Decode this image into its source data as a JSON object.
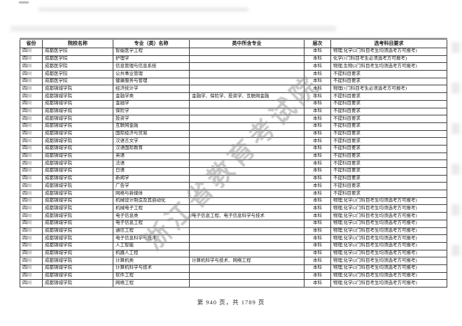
{
  "document": {
    "watermark_text": "浙江省教育考试院",
    "footer": "第 940 页，共 1789 页"
  },
  "colors": {
    "border": "#3c3c3c",
    "text": "#1a1a1a",
    "watermark_gray": "#8f8f8f",
    "table_top_border": "#979797",
    "background": "#ffffff"
  },
  "table": {
    "headers": [
      "省份",
      "院校名称",
      "专业（类）名称",
      "类中所含专业",
      "层次",
      "选考科目要求"
    ],
    "rows": [
      [
        "四川",
        "成都医学院",
        "智能医学工程",
        "",
        "本科",
        "物理,化学(2门科目考生均须选考方可报考)"
      ],
      [
        "四川",
        "成都医学院",
        "护理学",
        "",
        "本科",
        "化学(1门科目考生必须选考方可报考)"
      ],
      [
        "四川",
        "成都医学院",
        "信息管理与信息系统",
        "",
        "本科",
        "物理,生物(2门科目考生均须选考方可报考)"
      ],
      [
        "四川",
        "成都医学院",
        "公共事业管理",
        "",
        "本科",
        "不提科目要求"
      ],
      [
        "四川",
        "成都医学院",
        "健康服务与管理",
        "",
        "本科",
        "不提科目要求"
      ],
      [
        "四川",
        "成都锦城学院",
        "经济统计学",
        "",
        "本科",
        "物理(1门科目考生必须选考方可报考)"
      ],
      [
        "四川",
        "成都锦城学院",
        "金融学类",
        "金融学、保险学、投资学、互联网金融",
        "本科",
        "不提科目要求"
      ],
      [
        "四川",
        "成都锦城学院",
        "金融学",
        "",
        "本科",
        "不提科目要求"
      ],
      [
        "四川",
        "成都锦城学院",
        "保险学",
        "",
        "本科",
        "不提科目要求"
      ],
      [
        "四川",
        "成都锦城学院",
        "投资学",
        "",
        "本科",
        "不提科目要求"
      ],
      [
        "四川",
        "成都锦城学院",
        "互联网金融",
        "",
        "本科",
        "不提科目要求"
      ],
      [
        "四川",
        "成都锦城学院",
        "国际经济与贸易",
        "",
        "本科",
        "不提科目要求"
      ],
      [
        "四川",
        "成都锦城学院",
        "汉语言文学",
        "",
        "本科",
        "不提科目要求"
      ],
      [
        "四川",
        "成都锦城学院",
        "汉语国际教育",
        "",
        "本科",
        "不提科目要求"
      ],
      [
        "四川",
        "成都锦城学院",
        "英语",
        "",
        "本科",
        "不提科目要求"
      ],
      [
        "四川",
        "成都锦城学院",
        "法语",
        "",
        "本科",
        "不提科目要求"
      ],
      [
        "四川",
        "成都锦城学院",
        "日语",
        "",
        "本科",
        "不提科目要求"
      ],
      [
        "四川",
        "成都锦城学院",
        "新闻学",
        "",
        "本科",
        "不提科目要求"
      ],
      [
        "四川",
        "成都锦城学院",
        "广告学",
        "",
        "本科",
        "不提科目要求"
      ],
      [
        "四川",
        "成都锦城学院",
        "网络与新媒体",
        "",
        "本科",
        "不提科目要求"
      ],
      [
        "四川",
        "成都锦城学院",
        "机械设计制造及其自动化",
        "",
        "本科",
        "物理,化学(2门科目考生均须选考方可报考)"
      ],
      [
        "四川",
        "成都锦城学院",
        "机械电子工程",
        "",
        "本科",
        "物理,化学(2门科目考生均须选考方可报考)"
      ],
      [
        "四川",
        "成都锦城学院",
        "电子信息类",
        "电子信息工程、电子信息科学与技术",
        "本科",
        "物理,化学(2门科目考生均须选考方可报考)"
      ],
      [
        "四川",
        "成都锦城学院",
        "电子信息工程",
        "",
        "本科",
        "物理,化学(2门科目考生均须选考方可报考)"
      ],
      [
        "四川",
        "成都锦城学院",
        "通信工程",
        "",
        "本科",
        "物理,化学(2门科目考生均须选考方可报考)"
      ],
      [
        "四川",
        "成都锦城学院",
        "电子信息科学与技术",
        "",
        "本科",
        "物理,化学(2门科目考生均须选考方可报考)"
      ],
      [
        "四川",
        "成都锦城学院",
        "人工智能",
        "",
        "本科",
        "物理,化学(2门科目考生均须选考方可报考)"
      ],
      [
        "四川",
        "成都锦城学院",
        "机器人工程",
        "",
        "本科",
        "物理,化学(2门科目考生均须选考方可报考)"
      ],
      [
        "四川",
        "成都锦城学院",
        "计算机类",
        "计算机科学与技术、网络工程",
        "本科",
        "物理,化学(2门科目考生均须选考方可报考)"
      ],
      [
        "四川",
        "成都锦城学院",
        "计算机科学与技术",
        "",
        "本科",
        "物理,化学(2门科目考生均须选考方可报考)"
      ],
      [
        "四川",
        "成都锦城学院",
        "软件工程",
        "",
        "本科",
        "物理,化学(2门科目考生均须选考方可报考)"
      ],
      [
        "四川",
        "成都锦城学院",
        "网络工程",
        "",
        "本科",
        "物理,化学(2门科目考生均须选考方可报考)"
      ]
    ]
  }
}
